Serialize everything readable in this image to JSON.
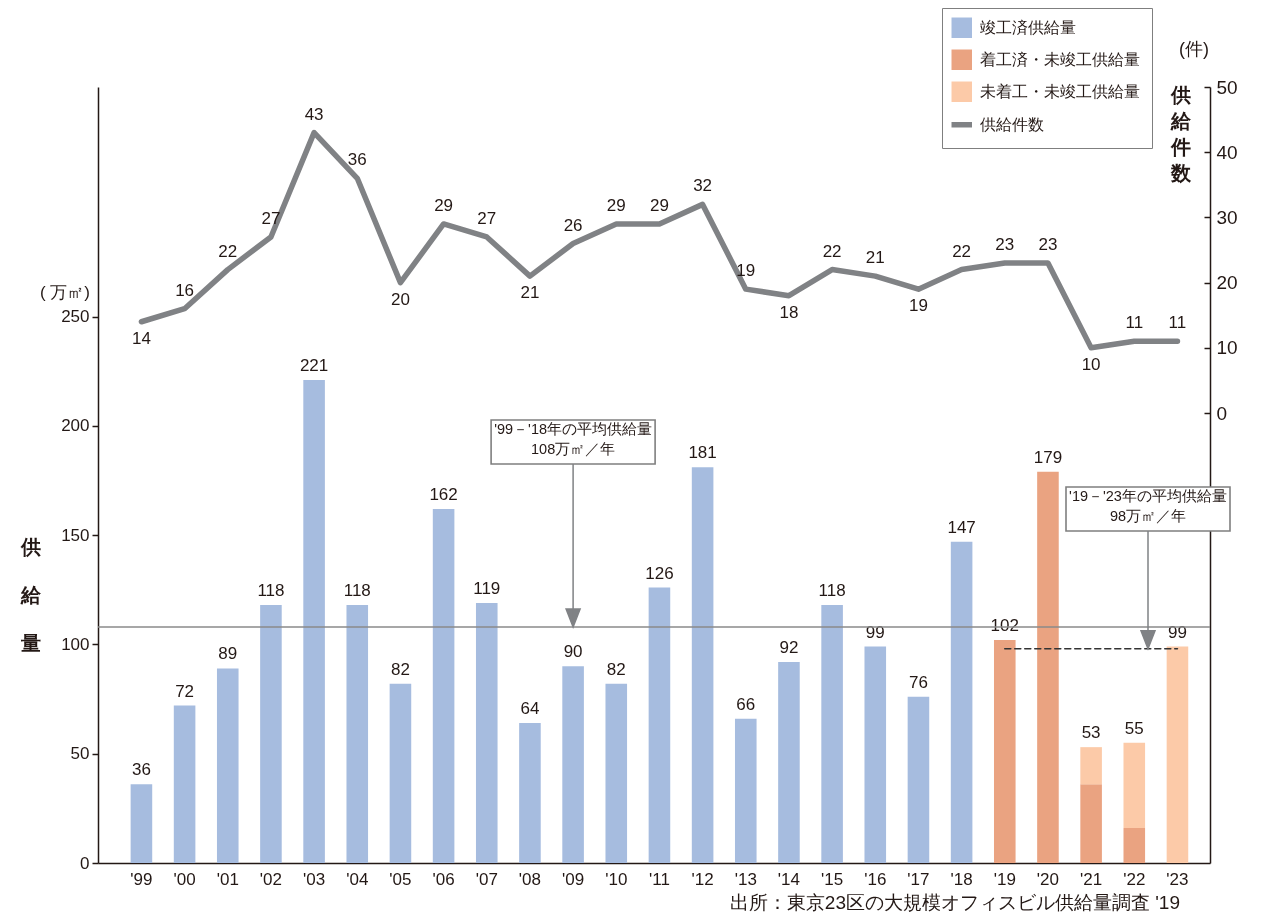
{
  "chart_data": {
    "type": "bar",
    "stacked": true,
    "categories": [
      "'99",
      "'00",
      "'01",
      "'02",
      "'03",
      "'04",
      "'05",
      "'06",
      "'07",
      "'08",
      "'09",
      "'10",
      "'11",
      "'12",
      "'13",
      "'14",
      "'15",
      "'16",
      "'17",
      "'18",
      "'19",
      "'20",
      "'21",
      "'22",
      "'23"
    ],
    "series": [
      {
        "name": "竣工済供給量",
        "color": "#a6bcdf",
        "values": [
          36,
          72,
          89,
          118,
          221,
          118,
          82,
          162,
          119,
          64,
          90,
          82,
          126,
          181,
          66,
          92,
          118,
          99,
          76,
          147,
          null,
          null,
          null,
          null,
          null
        ]
      },
      {
        "name": "着工済・未竣工供給量",
        "color": "#eaa381",
        "values": [
          null,
          null,
          null,
          null,
          null,
          null,
          null,
          null,
          null,
          null,
          null,
          null,
          null,
          null,
          null,
          null,
          null,
          null,
          null,
          null,
          102,
          179,
          36,
          16,
          null
        ]
      },
      {
        "name": "未着工・未竣工供給量",
        "color": "#fccaa8",
        "values": [
          null,
          null,
          null,
          null,
          null,
          null,
          null,
          null,
          null,
          null,
          null,
          null,
          null,
          null,
          null,
          null,
          null,
          null,
          null,
          null,
          null,
          null,
          17,
          39,
          99
        ]
      },
      {
        "name": "供給件数",
        "type": "line",
        "axis": "y2",
        "color": "#808285",
        "values": [
          14,
          16,
          22,
          27,
          43,
          36,
          20,
          29,
          27,
          21,
          26,
          29,
          29,
          32,
          19,
          18,
          22,
          21,
          19,
          22,
          23,
          23,
          10,
          11,
          11
        ],
        "value_labels": [
          "14",
          "16",
          "22",
          "27",
          "43",
          "36",
          "20",
          "29",
          "27",
          "21",
          "26",
          "29",
          "29",
          "32",
          "19",
          "18",
          "22",
          "21",
          "19",
          "22",
          "23",
          "23",
          "10",
          "11",
          "11"
        ]
      },
      {
        "type": "line",
        "x": [
          "'19",
          "'23"
        ],
        "values": [
          98,
          98
        ],
        "color": "#333333",
        "line_style": "dashed"
      }
    ],
    "totals": [
      "36",
      "72",
      "89",
      "118",
      "221",
      "118",
      "82",
      "162",
      "119",
      "64",
      "90",
      "82",
      "126",
      "181",
      "66",
      "92",
      "118",
      "99",
      "76",
      "147",
      "102",
      "179",
      "53",
      "55",
      "99"
    ],
    "ylabel": "供給量",
    "y2label": "供給件数",
    "ylim": [
      0,
      355
    ],
    "yticks": [
      0,
      50,
      100,
      150,
      200,
      250
    ],
    "y2lim": [
      -69,
      50
    ],
    "y2ticks": [
      0,
      10,
      20,
      30,
      40,
      50
    ],
    "legend": "top right",
    "ref_lines": [
      {
        "axis": "y",
        "value": 108,
        "color": "#8a8a8a"
      }
    ],
    "annotations": [
      {
        "text": "'99－'18年の平均供給量\n108万㎡／年",
        "x": "'09",
        "y": 108
      },
      {
        "text": "'19－'23年の平均供給量\n98万㎡／年",
        "y": 98
      },
      "( 万㎡)",
      "(件)",
      "出所：東京23区の大規模オフィスビル供給量調査 '19"
    ]
  }
}
